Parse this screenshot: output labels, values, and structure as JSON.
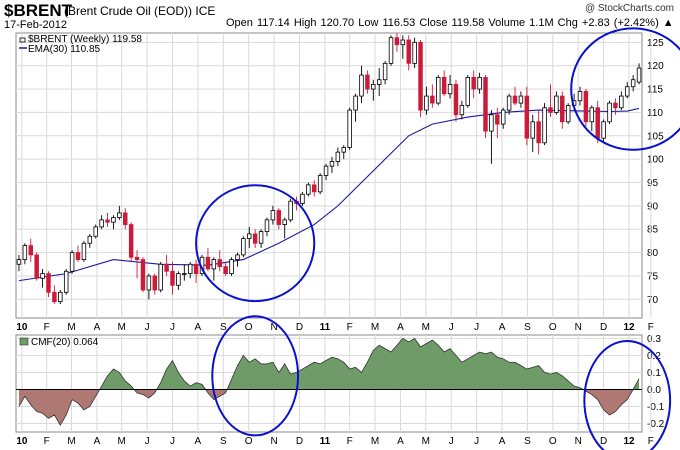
{
  "header": {
    "symbol": "$BRENT",
    "description": "(Brent Crude Oil (EOD)) ICE",
    "date": "17-Feb-2012",
    "ohlc": "Open 117.14 High 120.70 Low 116.53 Close 119.58 Volume 1.1M Chg +2.83 (+2.42%) ▲",
    "copyright": "@ StockCharts.com"
  },
  "colors": {
    "up_candle": "#000000",
    "down_candle": "#cc1a3a",
    "ema_line": "#1a1aa0",
    "cmf_positive": "#6f9b68",
    "cmf_negative": "#b07872",
    "highlight_circle": "#0a10d0",
    "grid": "#d9d9d9"
  },
  "chart_data": [
    {
      "type": "candlestick",
      "legend": [
        "$BRENT (Weekly) 119.58",
        "EMA(30) 110.85"
      ],
      "y_ticks": [
        70,
        75,
        80,
        85,
        90,
        95,
        100,
        105,
        110,
        115,
        120,
        125
      ],
      "ylim": [
        66,
        127
      ],
      "x_tick_labels": [
        "10",
        "F",
        "M",
        "A",
        "M",
        "J",
        "J",
        "A",
        "S",
        "O",
        "N",
        "D",
        "11",
        "F",
        "M",
        "A",
        "M",
        "J",
        "J",
        "A",
        "S",
        "O",
        "N",
        "D",
        "12",
        "F"
      ],
      "grid": true,
      "candles": [
        [
          77.5,
          79.5,
          76.0,
          78.5
        ],
        [
          78.5,
          82.0,
          77.5,
          81.5
        ],
        [
          81.5,
          83.0,
          78.0,
          79.5
        ],
        [
          79.5,
          80.0,
          74.0,
          74.5
        ],
        [
          74.5,
          76.5,
          72.5,
          75.5
        ],
        [
          75.5,
          76.0,
          70.5,
          71.5
        ],
        [
          71.5,
          73.0,
          69.0,
          69.5
        ],
        [
          69.5,
          72.0,
          69.0,
          71.5
        ],
        [
          71.5,
          76.5,
          71.0,
          76.0
        ],
        [
          76.0,
          80.5,
          75.5,
          80.0
        ],
        [
          80.0,
          81.5,
          78.0,
          78.5
        ],
        [
          78.5,
          82.5,
          78.0,
          82.0
        ],
        [
          82.0,
          84.0,
          81.0,
          83.5
        ],
        [
          83.5,
          86.0,
          83.0,
          85.5
        ],
        [
          85.5,
          88.0,
          85.0,
          87.0
        ],
        [
          87.0,
          88.5,
          85.5,
          86.5
        ],
        [
          86.5,
          88.0,
          85.0,
          87.5
        ],
        [
          87.5,
          90.0,
          87.0,
          88.5
        ],
        [
          88.5,
          89.5,
          85.0,
          86.0
        ],
        [
          86.0,
          86.5,
          78.0,
          79.0
        ],
        [
          79.0,
          80.5,
          74.5,
          78.5
        ],
        [
          78.5,
          79.0,
          71.5,
          72.0
        ],
        [
          72.0,
          75.5,
          70.0,
          75.0
        ],
        [
          75.0,
          75.5,
          71.0,
          72.0
        ],
        [
          72.0,
          78.0,
          71.5,
          77.5
        ],
        [
          77.5,
          79.5,
          75.0,
          76.0
        ],
        [
          76.0,
          78.0,
          71.0,
          73.0
        ],
        [
          73.0,
          76.0,
          72.0,
          75.5
        ],
        [
          75.5,
          77.5,
          74.0,
          75.5
        ],
        [
          75.5,
          78.0,
          74.5,
          77.5
        ],
        [
          77.5,
          78.5,
          73.5,
          75.5
        ],
        [
          75.5,
          79.5,
          75.0,
          79.0
        ],
        [
          79.0,
          81.0,
          76.0,
          76.5
        ],
        [
          76.5,
          79.0,
          74.0,
          78.5
        ],
        [
          78.5,
          80.5,
          76.0,
          77.0
        ],
        [
          77.0,
          78.0,
          75.0,
          75.5
        ],
        [
          75.5,
          79.0,
          75.0,
          78.5
        ],
        [
          78.5,
          80.0,
          77.0,
          79.5
        ],
        [
          79.5,
          83.5,
          79.0,
          83.0
        ],
        [
          83.0,
          85.5,
          81.0,
          84.0
        ],
        [
          84.0,
          85.0,
          81.0,
          82.0
        ],
        [
          82.0,
          85.0,
          81.0,
          84.5
        ],
        [
          84.5,
          87.5,
          83.5,
          87.0
        ],
        [
          87.0,
          90.0,
          86.0,
          89.0
        ],
        [
          89.0,
          89.5,
          85.0,
          86.0
        ],
        [
          86.0,
          87.5,
          83.0,
          87.0
        ],
        [
          87.0,
          91.5,
          86.5,
          91.0
        ],
        [
          91.0,
          92.0,
          89.0,
          90.5
        ],
        [
          90.5,
          93.0,
          90.0,
          92.5
        ],
        [
          92.5,
          95.0,
          92.0,
          94.5
        ],
        [
          94.5,
          95.5,
          92.0,
          93.0
        ],
        [
          93.0,
          97.0,
          92.5,
          96.5
        ],
        [
          96.5,
          99.0,
          95.5,
          98.5
        ],
        [
          98.5,
          100.5,
          97.0,
          99.5
        ],
        [
          99.5,
          102.5,
          98.5,
          101.5
        ],
        [
          101.5,
          103.0,
          100.0,
          102.5
        ],
        [
          102.5,
          111.0,
          102.0,
          110.5
        ],
        [
          110.5,
          114.0,
          108.0,
          113.5
        ],
        [
          113.5,
          120.0,
          112.0,
          118.0
        ],
        [
          118.0,
          119.0,
          114.0,
          115.0
        ],
        [
          115.0,
          117.0,
          112.5,
          116.0
        ],
        [
          116.0,
          119.5,
          113.5,
          117.0
        ],
        [
          117.0,
          121.0,
          116.0,
          120.5
        ],
        [
          120.5,
          126.5,
          120.0,
          126.0
        ],
        [
          126.0,
          127.0,
          123.0,
          124.5
        ],
        [
          124.5,
          126.5,
          121.5,
          125.5
        ],
        [
          125.5,
          126.5,
          119.0,
          120.5
        ],
        [
          120.5,
          126.0,
          119.5,
          125.0
        ],
        [
          125.0,
          125.5,
          109.0,
          110.5
        ],
        [
          110.5,
          115.5,
          109.5,
          113.5
        ],
        [
          113.5,
          116.0,
          111.0,
          112.0
        ],
        [
          112.0,
          118.0,
          111.5,
          117.5
        ],
        [
          117.5,
          119.0,
          113.5,
          114.0
        ],
        [
          114.0,
          118.0,
          113.0,
          116.0
        ],
        [
          116.0,
          117.0,
          108.0,
          109.5
        ],
        [
          109.5,
          112.5,
          108.5,
          111.5
        ],
        [
          111.5,
          118.0,
          111.0,
          117.5
        ],
        [
          117.5,
          119.0,
          113.0,
          115.0
        ],
        [
          115.0,
          118.5,
          114.0,
          117.5
        ],
        [
          117.5,
          118.0,
          104.5,
          106.0
        ],
        [
          106.0,
          110.5,
          99.0,
          109.5
        ],
        [
          109.5,
          111.0,
          104.5,
          107.5
        ],
        [
          107.5,
          111.0,
          106.5,
          110.5
        ],
        [
          110.5,
          114.0,
          109.5,
          113.5
        ],
        [
          113.5,
          115.5,
          111.5,
          112.0
        ],
        [
          112.0,
          114.5,
          111.0,
          113.5
        ],
        [
          113.5,
          115.5,
          103.0,
          104.5
        ],
        [
          104.5,
          109.5,
          101.5,
          108.0
        ],
        [
          108.0,
          110.5,
          101.0,
          103.5
        ],
        [
          103.5,
          112.0,
          103.0,
          111.0
        ],
        [
          111.0,
          116.0,
          109.0,
          110.0
        ],
        [
          110.0,
          114.5,
          109.5,
          113.5
        ],
        [
          113.5,
          114.5,
          106.5,
          108.0
        ],
        [
          108.0,
          112.0,
          107.5,
          111.5
        ],
        [
          111.5,
          114.0,
          110.5,
          112.5
        ],
        [
          112.5,
          115.5,
          111.5,
          114.5
        ],
        [
          114.5,
          115.0,
          107.0,
          108.0
        ],
        [
          108.0,
          111.5,
          106.0,
          111.0
        ],
        [
          111.0,
          112.5,
          103.5,
          104.5
        ],
        [
          104.5,
          108.5,
          103.5,
          108.0
        ],
        [
          108.0,
          112.5,
          107.5,
          112.0
        ],
        [
          112.0,
          113.0,
          109.5,
          111.0
        ],
        [
          111.0,
          114.5,
          110.5,
          113.5
        ],
        [
          113.5,
          116.5,
          113.0,
          115.5
        ],
        [
          115.5,
          118.0,
          114.5,
          117.0
        ],
        [
          116.5,
          120.5,
          116.0,
          119.5
        ]
      ],
      "ema30": [
        [
          0,
          74.0
        ],
        [
          8,
          75.5
        ],
        [
          16,
          78.5
        ],
        [
          24,
          77.5
        ],
        [
          32,
          77.3
        ],
        [
          38,
          78.5
        ],
        [
          44,
          82.0
        ],
        [
          50,
          86.0
        ],
        [
          54,
          90.0
        ],
        [
          58,
          95.0
        ],
        [
          62,
          100.0
        ],
        [
          66,
          105.0
        ],
        [
          70,
          107.5
        ],
        [
          76,
          109.0
        ],
        [
          82,
          110.0
        ],
        [
          88,
          110.5
        ],
        [
          96,
          110.3
        ],
        [
          100,
          110.2
        ],
        [
          103,
          110.3
        ],
        [
          105,
          110.85
        ]
      ],
      "highlight_circles": [
        {
          "cx": 40,
          "cy": 82,
          "r": 6.2
        },
        {
          "cx": 104,
          "cy": 115,
          "r": 6.5
        }
      ]
    },
    {
      "type": "area",
      "legend": [
        "CMF(20) 0.064"
      ],
      "y_ticks": [
        -0.2,
        -0.1,
        0.0,
        0.1,
        0.2,
        0.3
      ],
      "ylim": [
        -0.25,
        0.32
      ],
      "x_tick_labels": [
        "10",
        "F",
        "M",
        "A",
        "M",
        "J",
        "J",
        "A",
        "S",
        "O",
        "N",
        "D",
        "11",
        "F",
        "M",
        "A",
        "M",
        "J",
        "J",
        "A",
        "S",
        "O",
        "N",
        "D",
        "12",
        "F"
      ],
      "values": [
        -0.1,
        -0.04,
        -0.09,
        -0.13,
        -0.14,
        -0.17,
        -0.15,
        -0.21,
        -0.15,
        -0.06,
        -0.08,
        -0.12,
        -0.1,
        -0.04,
        0.02,
        0.08,
        0.12,
        0.1,
        0.05,
        0.02,
        -0.02,
        -0.03,
        -0.05,
        -0.02,
        0.04,
        0.12,
        0.17,
        0.1,
        0.05,
        0.02,
        0.04,
        0.03,
        -0.02,
        -0.06,
        -0.04,
        -0.02,
        0.06,
        0.14,
        0.2,
        0.16,
        0.18,
        0.15,
        0.15,
        0.16,
        0.1,
        0.15,
        0.09,
        0.1,
        0.12,
        0.14,
        0.16,
        0.15,
        0.17,
        0.19,
        0.18,
        0.16,
        0.12,
        0.13,
        0.1,
        0.16,
        0.23,
        0.26,
        0.24,
        0.22,
        0.26,
        0.3,
        0.28,
        0.3,
        0.25,
        0.27,
        0.29,
        0.26,
        0.22,
        0.24,
        0.2,
        0.16,
        0.18,
        0.2,
        0.22,
        0.21,
        0.22,
        0.19,
        0.18,
        0.16,
        0.16,
        0.14,
        0.12,
        0.13,
        0.14,
        0.1,
        0.09,
        0.1,
        0.08,
        0.05,
        0.02,
        0.01,
        -0.01,
        -0.03,
        -0.06,
        -0.12,
        -0.15,
        -0.13,
        -0.09,
        -0.06,
        0.0,
        0.064
      ],
      "highlight_circles": [
        {
          "cx": 40,
          "cy": 0.08,
          "r": 0.2
        },
        {
          "cx": 103,
          "cy": -0.065,
          "r": 0.2
        }
      ]
    }
  ]
}
